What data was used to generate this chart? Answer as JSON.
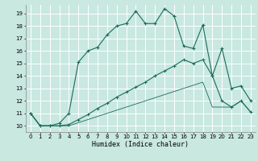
{
  "xlabel": "Humidex (Indice chaleur)",
  "bg_color": "#c8e8e0",
  "grid_color": "#ffffff",
  "line_color": "#1a6b5a",
  "x_ticks": [
    0,
    1,
    2,
    3,
    4,
    5,
    6,
    7,
    8,
    9,
    10,
    11,
    12,
    13,
    14,
    15,
    16,
    17,
    18,
    19,
    20,
    21,
    22,
    23
  ],
  "y_ticks": [
    10,
    11,
    12,
    13,
    14,
    15,
    16,
    17,
    18,
    19
  ],
  "xlim": [
    -0.5,
    23.5
  ],
  "ylim": [
    9.5,
    19.7
  ],
  "line1_x": [
    0,
    1,
    2,
    3,
    4,
    5,
    6,
    7,
    8,
    9,
    10,
    11,
    12,
    13,
    14,
    15,
    16,
    17,
    18,
    19,
    20,
    21,
    22,
    23
  ],
  "line1_y": [
    11.0,
    10.0,
    10.0,
    10.2,
    11.0,
    15.1,
    16.0,
    16.3,
    17.3,
    18.0,
    18.2,
    19.2,
    18.2,
    18.2,
    19.4,
    18.8,
    16.4,
    16.2,
    18.1,
    14.0,
    16.2,
    13.0,
    13.2,
    12.0
  ],
  "line2_x": [
    0,
    1,
    2,
    3,
    4,
    5,
    6,
    7,
    8,
    9,
    10,
    11,
    12,
    13,
    14,
    15,
    16,
    17,
    18,
    19,
    20,
    21,
    22,
    23
  ],
  "line2_y": [
    11.0,
    10.0,
    10.0,
    10.0,
    10.1,
    10.5,
    10.9,
    11.4,
    11.8,
    12.3,
    12.7,
    13.1,
    13.5,
    14.0,
    14.4,
    14.8,
    15.3,
    15.0,
    15.3,
    14.0,
    12.0,
    11.5,
    12.0,
    11.1
  ],
  "line3_x": [
    0,
    1,
    2,
    3,
    4,
    5,
    6,
    7,
    8,
    9,
    10,
    11,
    12,
    13,
    14,
    15,
    16,
    17,
    18,
    19,
    20,
    21,
    22,
    23
  ],
  "line3_y": [
    11.0,
    10.0,
    10.0,
    10.0,
    10.0,
    10.25,
    10.5,
    10.75,
    11.0,
    11.25,
    11.5,
    11.75,
    12.0,
    12.25,
    12.5,
    12.75,
    13.0,
    13.25,
    13.5,
    11.5,
    11.5,
    11.5,
    12.0,
    11.1
  ]
}
